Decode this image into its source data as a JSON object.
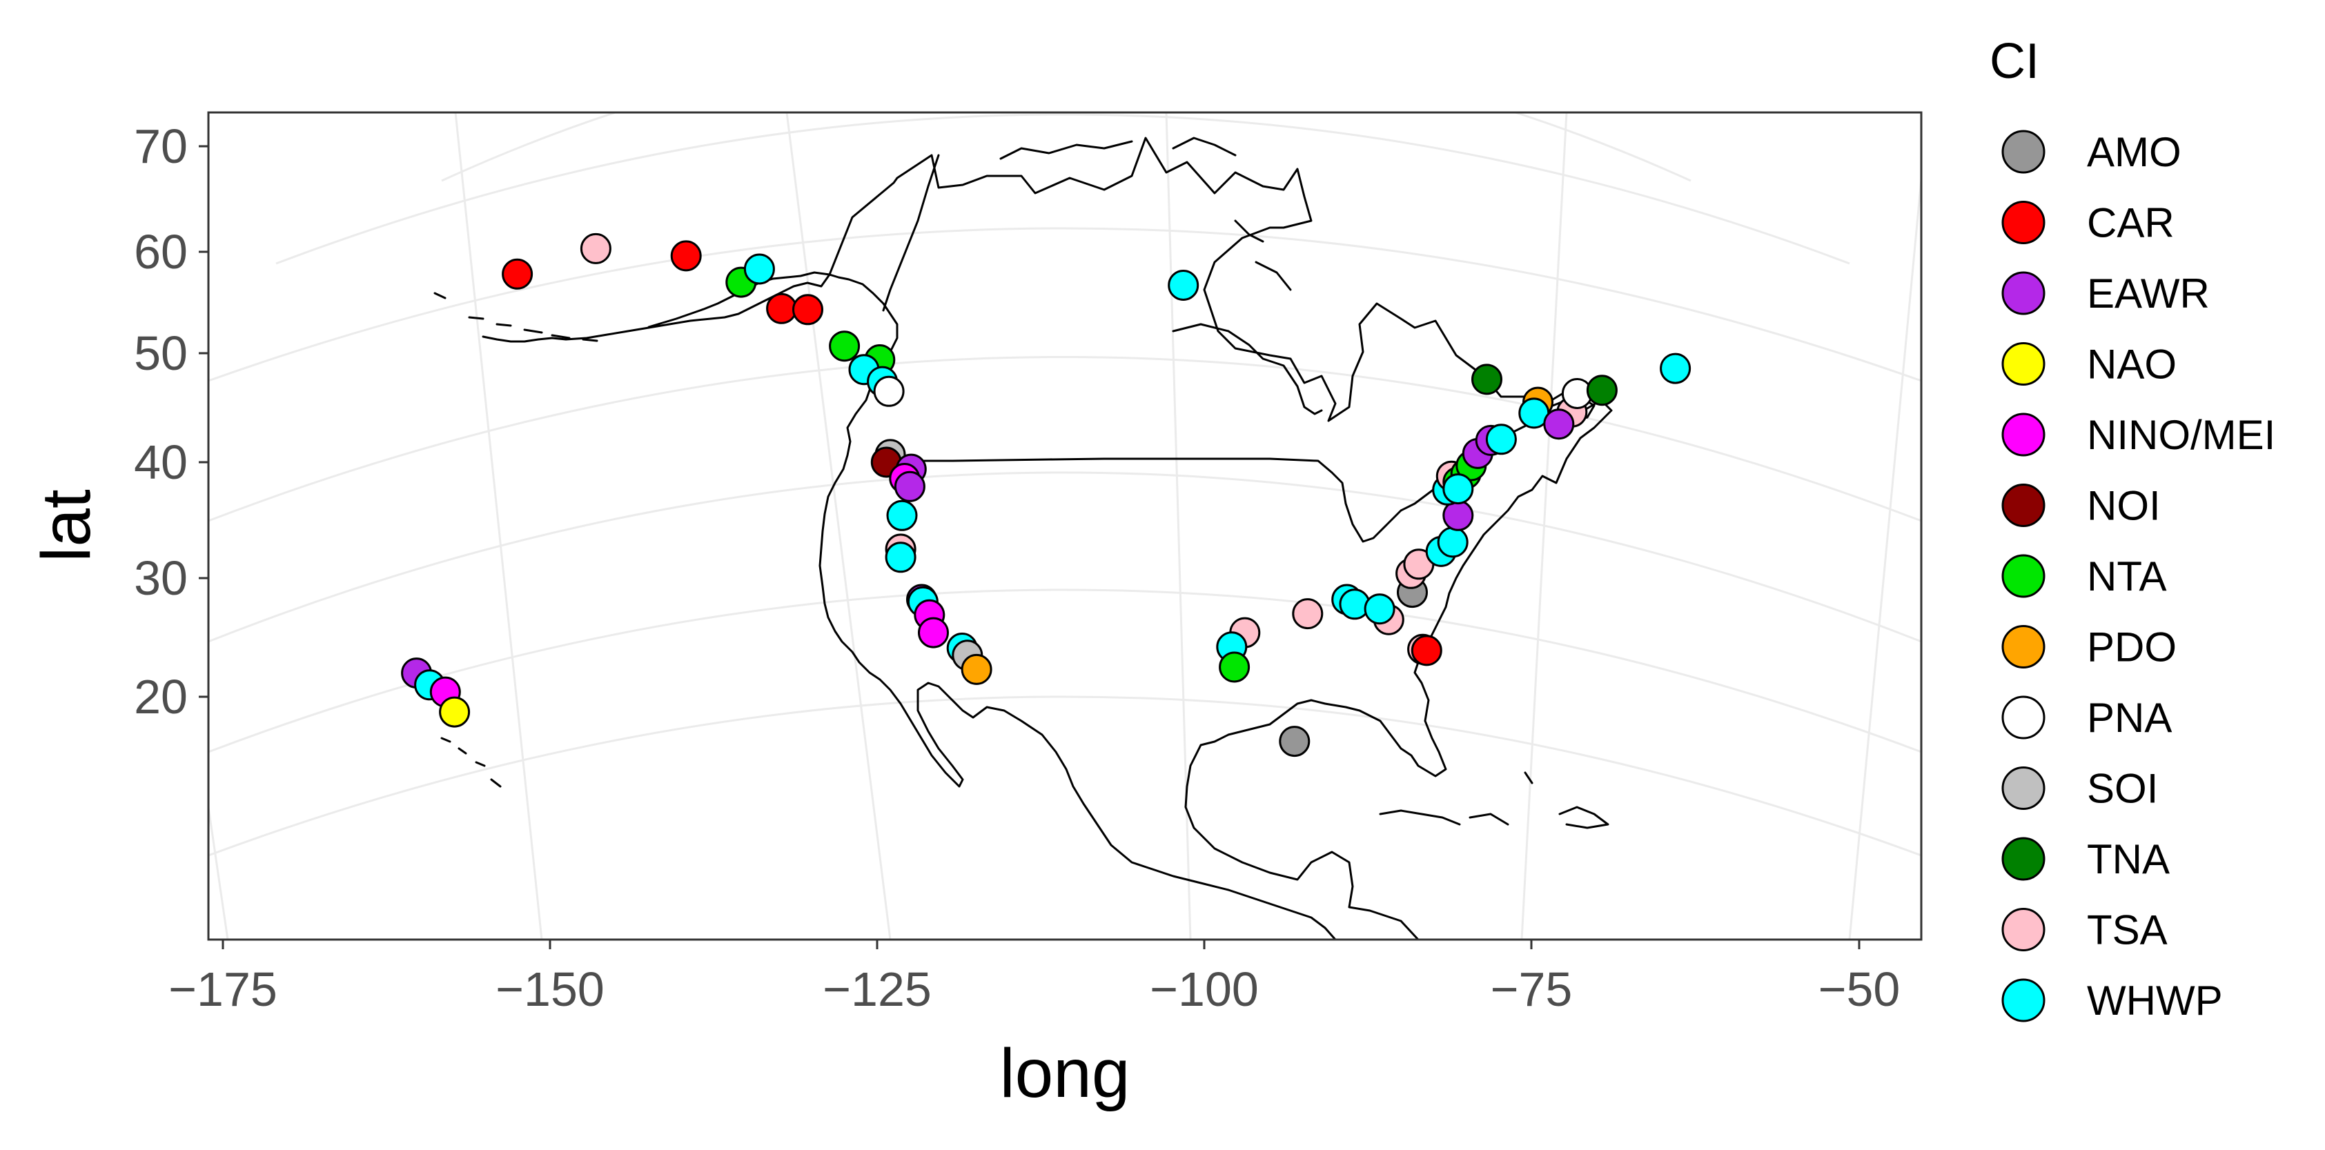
{
  "chart_data": {
    "type": "scatter",
    "xlabel": "long",
    "ylabel": "lat",
    "x_ticks": [
      "−175",
      "−150",
      "−125",
      "−100",
      "−75",
      "−50"
    ],
    "x_tick_values": [
      -175,
      -150,
      -125,
      -100,
      -75,
      -50
    ],
    "y_ticks": [
      "70",
      "60",
      "50",
      "40",
      "30",
      "20"
    ],
    "y_tick_values": [
      70,
      60,
      50,
      40,
      30,
      20
    ],
    "legend": {
      "title": "CI",
      "placement": "right",
      "items": [
        {
          "label": "AMO",
          "color": "#969696"
        },
        {
          "label": "CAR",
          "color": "#ff0000"
        },
        {
          "label": "EAWR",
          "color": "#b428e8"
        },
        {
          "label": "NAO",
          "color": "#ffff00"
        },
        {
          "label": "NINO/MEI",
          "color": "#ff00ff"
        },
        {
          "label": "NOI",
          "color": "#8b0000"
        },
        {
          "label": "NTA",
          "color": "#00e600"
        },
        {
          "label": "PDO",
          "color": "#ffa500"
        },
        {
          "label": "PNA",
          "color": "#ffffff"
        },
        {
          "label": "SOI",
          "color": "#c0c0c0"
        },
        {
          "label": "TNA",
          "color": "#008000"
        },
        {
          "label": "TSA",
          "color": "#ffc0cb"
        },
        {
          "label": "WHWP",
          "color": "#00ffff"
        }
      ]
    },
    "points": [
      {
        "ci": "CAR",
        "long": -152.5,
        "lat": 57.8
      },
      {
        "ci": "TSA",
        "long": -146.5,
        "lat": 60.3
      },
      {
        "ci": "CAR",
        "long": -139.6,
        "lat": 59.6
      },
      {
        "ci": "NTA",
        "long": -135.4,
        "lat": 57.0
      },
      {
        "ci": "WHWP",
        "long": -134.0,
        "lat": 58.3
      },
      {
        "ci": "CAR",
        "long": -132.3,
        "lat": 54.4
      },
      {
        "ci": "CAR",
        "long": -130.3,
        "lat": 54.3
      },
      {
        "ci": "NTA",
        "long": -127.5,
        "lat": 50.7
      },
      {
        "ci": "NTA",
        "long": -124.8,
        "lat": 49.4
      },
      {
        "ci": "WHWP",
        "long": -126.0,
        "lat": 48.5
      },
      {
        "ci": "WHWP",
        "long": -124.6,
        "lat": 47.4
      },
      {
        "ci": "PNA",
        "long": -124.1,
        "lat": 46.5
      },
      {
        "ci": "SOI",
        "long": -124.0,
        "lat": 40.7
      },
      {
        "ci": "NOI",
        "long": -124.3,
        "lat": 40.0
      },
      {
        "ci": "EAWR",
        "long": -122.4,
        "lat": 39.4
      },
      {
        "ci": "NINO/MEI",
        "long": -122.9,
        "lat": 38.6
      },
      {
        "ci": "EAWR",
        "long": -122.5,
        "lat": 37.9
      },
      {
        "ci": "WHWP",
        "long": -123.1,
        "lat": 35.4
      },
      {
        "ci": "TSA",
        "long": -123.2,
        "lat": 32.5
      },
      {
        "ci": "WHWP",
        "long": -123.2,
        "lat": 31.8
      },
      {
        "ci": "EAWR",
        "long": -121.6,
        "lat": 28.2
      },
      {
        "ci": "WHWP",
        "long": -121.5,
        "lat": 28.0
      },
      {
        "ci": "NINO/MEI",
        "long": -121.0,
        "lat": 26.9
      },
      {
        "ci": "NINO/MEI",
        "long": -120.7,
        "lat": 25.4
      },
      {
        "ci": "WHWP",
        "long": -118.5,
        "lat": 24.1
      },
      {
        "ci": "SOI",
        "long": -118.1,
        "lat": 23.5
      },
      {
        "ci": "PDO",
        "long": -117.4,
        "lat": 22.3
      },
      {
        "ci": "WHWP",
        "long": -101.6,
        "lat": 56.7
      },
      {
        "ci": "TSA",
        "long": -96.9,
        "lat": 25.4
      },
      {
        "ci": "WHWP",
        "long": -97.9,
        "lat": 24.2
      },
      {
        "ci": "NTA",
        "long": -97.7,
        "lat": 22.5
      },
      {
        "ci": "TSA",
        "long": -92.1,
        "lat": 27.0
      },
      {
        "ci": "WHWP",
        "long": -89.1,
        "lat": 28.2
      },
      {
        "ci": "WHWP",
        "long": -88.5,
        "lat": 27.8
      },
      {
        "ci": "TSA",
        "long": -85.9,
        "lat": 26.5
      },
      {
        "ci": "WHWP",
        "long": -86.6,
        "lat": 27.4
      },
      {
        "ci": "AMO",
        "long": -93.1,
        "lat": 16.2
      },
      {
        "ci": "TSA",
        "long": -83.3,
        "lat": 24.0
      },
      {
        "ci": "CAR",
        "long": -83.0,
        "lat": 23.9
      },
      {
        "ci": "AMO",
        "long": -84.1,
        "lat": 28.8
      },
      {
        "ci": "TSA",
        "long": -84.2,
        "lat": 30.4
      },
      {
        "ci": "TSA",
        "long": -83.6,
        "lat": 31.2
      },
      {
        "ci": "WHWP",
        "long": -81.9,
        "lat": 32.3
      },
      {
        "ci": "WHWP",
        "long": -81.0,
        "lat": 33.1
      },
      {
        "ci": "EAWR",
        "long": -80.6,
        "lat": 35.4
      },
      {
        "ci": "WHWP",
        "long": -81.4,
        "lat": 37.6
      },
      {
        "ci": "TSA",
        "long": -81.1,
        "lat": 38.8
      },
      {
        "ci": "NTA",
        "long": -80.6,
        "lat": 38.3
      },
      {
        "ci": "NTA",
        "long": -80.0,
        "lat": 39.0
      },
      {
        "ci": "NTA",
        "long": -79.6,
        "lat": 39.7
      },
      {
        "ci": "WHWP",
        "long": -80.6,
        "lat": 37.7
      },
      {
        "ci": "EAWR",
        "long": -79.1,
        "lat": 40.8
      },
      {
        "ci": "EAWR",
        "long": -78.1,
        "lat": 42.0
      },
      {
        "ci": "WHWP",
        "long": -77.3,
        "lat": 42.1
      },
      {
        "ci": "TNA",
        "long": -78.4,
        "lat": 47.6
      },
      {
        "ci": "PDO",
        "long": -74.5,
        "lat": 45.5
      },
      {
        "ci": "WHWP",
        "long": -74.8,
        "lat": 44.5
      },
      {
        "ci": "TSA",
        "long": -71.9,
        "lat": 44.6
      },
      {
        "ci": "EAWR",
        "long": -72.9,
        "lat": 43.5
      },
      {
        "ci": "PNA",
        "long": -71.5,
        "lat": 46.3
      },
      {
        "ci": "TNA",
        "long": -69.6,
        "lat": 46.6
      },
      {
        "ci": "WHWP",
        "long": -64.0,
        "lat": 48.6
      },
      {
        "ci": "EAWR",
        "long": -160.2,
        "lat": 22.0
      },
      {
        "ci": "WHWP",
        "long": -159.2,
        "lat": 21.0
      },
      {
        "ci": "NINO/MEI",
        "long": -158.0,
        "lat": 20.4
      },
      {
        "ci": "NAO",
        "long": -157.3,
        "lat": 18.7
      }
    ]
  }
}
